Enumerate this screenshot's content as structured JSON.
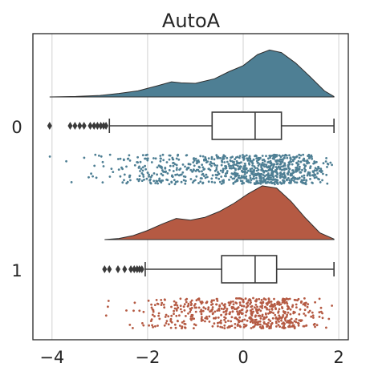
{
  "chart_data": {
    "type": "raincloud",
    "title": "AutoA",
    "xlabel": "",
    "ylabel": "",
    "xlim": [
      -4.4,
      2.2
    ],
    "x_ticks": [
      -4,
      -2,
      0,
      2
    ],
    "x_tick_labels": [
      "−4",
      "−2",
      "0",
      "2"
    ],
    "grid": "vertical",
    "categories": [
      "0",
      "1"
    ],
    "colors": {
      "0": "#4e7f94",
      "1": "#b55a43",
      "box_line": "#3a3a3a",
      "grid": "#d0d0d0",
      "frame": "#262626"
    },
    "series": [
      {
        "category": "0",
        "range": [
          -4.05,
          1.9
        ],
        "box": {
          "whisker_low": -2.8,
          "q1": -0.65,
          "median": 0.25,
          "q3": 0.8,
          "whisker_high": 1.9
        },
        "outliers": [
          -4.05,
          -3.62,
          -3.52,
          -3.42,
          -3.33,
          -3.2,
          -3.12,
          -3.05,
          -2.98,
          -2.92,
          -2.87
        ],
        "density": [
          [
            -4.05,
            0.0
          ],
          [
            -3.5,
            0.01
          ],
          [
            -3.0,
            0.03
          ],
          [
            -2.6,
            0.07
          ],
          [
            -2.2,
            0.12
          ],
          [
            -1.8,
            0.22
          ],
          [
            -1.5,
            0.3
          ],
          [
            -1.3,
            0.28
          ],
          [
            -1.0,
            0.27
          ],
          [
            -0.6,
            0.36
          ],
          [
            -0.3,
            0.5
          ],
          [
            0.0,
            0.62
          ],
          [
            0.3,
            0.84
          ],
          [
            0.55,
            0.93
          ],
          [
            0.8,
            0.88
          ],
          [
            1.1,
            0.67
          ],
          [
            1.4,
            0.4
          ],
          [
            1.7,
            0.12
          ],
          [
            1.9,
            0.01
          ]
        ]
      },
      {
        "category": "1",
        "range": [
          -2.9,
          1.9
        ],
        "box": {
          "whisker_low": -2.05,
          "q1": -0.45,
          "median": 0.25,
          "q3": 0.7,
          "whisker_high": 1.9
        },
        "outliers": [
          -2.9,
          -2.8,
          -2.62,
          -2.48,
          -2.35,
          -2.28,
          -2.22,
          -2.17,
          -2.12
        ],
        "density": [
          [
            -2.9,
            0.0
          ],
          [
            -2.6,
            0.02
          ],
          [
            -2.3,
            0.07
          ],
          [
            -2.0,
            0.16
          ],
          [
            -1.7,
            0.27
          ],
          [
            -1.4,
            0.37
          ],
          [
            -1.1,
            0.34
          ],
          [
            -0.8,
            0.39
          ],
          [
            -0.5,
            0.49
          ],
          [
            -0.2,
            0.63
          ],
          [
            0.1,
            0.8
          ],
          [
            0.4,
            0.94
          ],
          [
            0.7,
            0.9
          ],
          [
            1.0,
            0.67
          ],
          [
            1.3,
            0.38
          ],
          [
            1.6,
            0.12
          ],
          [
            1.9,
            0.01
          ]
        ]
      }
    ]
  }
}
